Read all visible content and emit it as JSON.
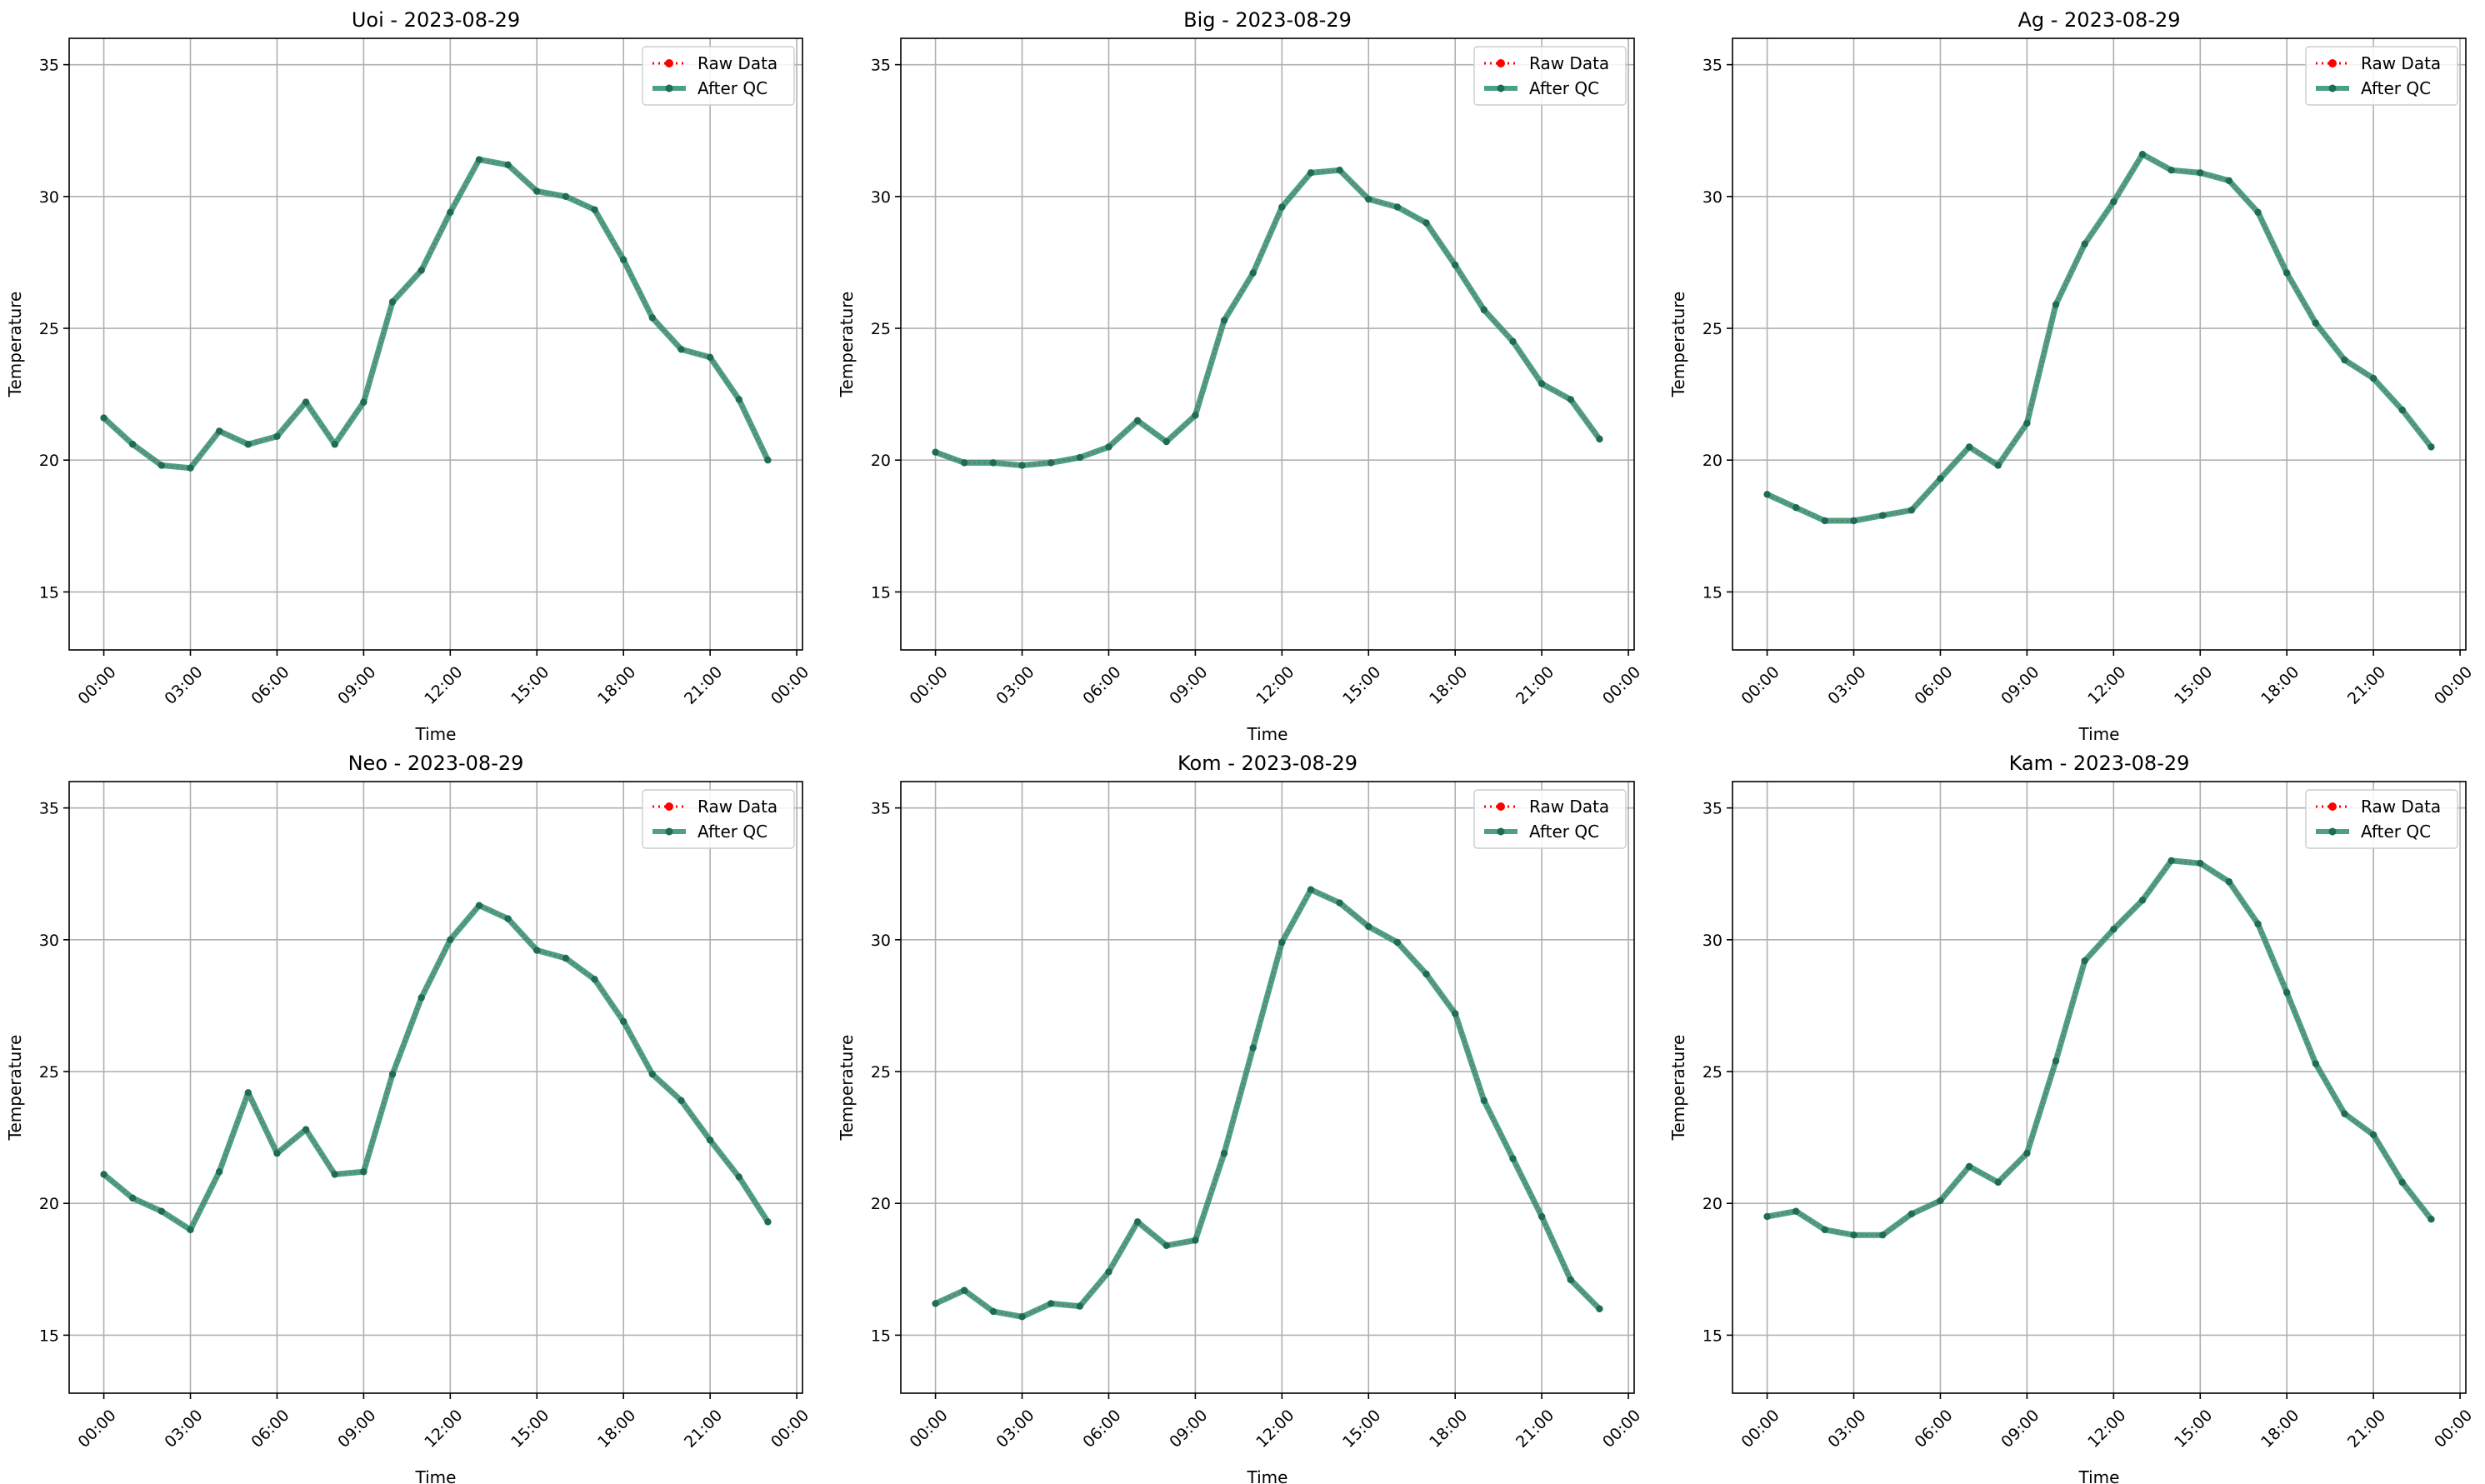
{
  "figure": {
    "background": "#ffffff"
  },
  "style": {
    "raw_color": "#ff0000",
    "qc_color": "#2a9070",
    "grid_color": "#b0b0b0",
    "axis_color": "#000000"
  },
  "chart_data": [
    {
      "type": "line",
      "title": "Uoi - 2023-08-29",
      "xlabel": "Time",
      "ylabel": "Temperature",
      "x": [
        "00:00",
        "01:00",
        "02:00",
        "03:00",
        "04:00",
        "05:00",
        "06:00",
        "07:00",
        "08:00",
        "09:00",
        "10:00",
        "11:00",
        "12:00",
        "13:00",
        "14:00",
        "15:00",
        "16:00",
        "17:00",
        "18:00",
        "19:00",
        "20:00",
        "21:00",
        "22:00",
        "23:00"
      ],
      "x_ticks": [
        "00:00",
        "03:00",
        "06:00",
        "09:00",
        "12:00",
        "15:00",
        "18:00",
        "21:00",
        "00:00"
      ],
      "x_range_hours": [
        -1.2,
        24.2
      ],
      "ylim": [
        12.8,
        36.0
      ],
      "y_ticks": [
        15,
        20,
        25,
        30,
        35
      ],
      "grid": true,
      "legend": "upper right",
      "series": [
        {
          "name": "Raw Data",
          "values": [
            21.6,
            20.6,
            19.8,
            19.7,
            21.1,
            20.6,
            20.9,
            22.2,
            20.6,
            22.2,
            26.0,
            27.2,
            29.4,
            31.4,
            31.2,
            30.2,
            30.0,
            29.5,
            27.6,
            25.4,
            24.2,
            23.9,
            22.3,
            20.0
          ]
        },
        {
          "name": "After QC",
          "values": [
            21.6,
            20.6,
            19.8,
            19.7,
            21.1,
            20.6,
            20.9,
            22.2,
            20.6,
            22.2,
            26.0,
            27.2,
            29.4,
            31.4,
            31.2,
            30.2,
            30.0,
            29.5,
            27.6,
            25.4,
            24.2,
            23.9,
            22.3,
            20.0
          ]
        }
      ]
    },
    {
      "type": "line",
      "title": "Big - 2023-08-29",
      "xlabel": "Time",
      "ylabel": "Temperature",
      "x": [
        "00:00",
        "01:00",
        "02:00",
        "03:00",
        "04:00",
        "05:00",
        "06:00",
        "07:00",
        "08:00",
        "09:00",
        "10:00",
        "11:00",
        "12:00",
        "13:00",
        "14:00",
        "15:00",
        "16:00",
        "17:00",
        "18:00",
        "19:00",
        "20:00",
        "21:00",
        "22:00",
        "23:00"
      ],
      "x_ticks": [
        "00:00",
        "03:00",
        "06:00",
        "09:00",
        "12:00",
        "15:00",
        "18:00",
        "21:00",
        "00:00"
      ],
      "x_range_hours": [
        -1.2,
        24.2
      ],
      "ylim": [
        12.8,
        36.0
      ],
      "y_ticks": [
        15,
        20,
        25,
        30,
        35
      ],
      "grid": true,
      "legend": "upper right",
      "series": [
        {
          "name": "Raw Data",
          "values": [
            20.3,
            19.9,
            19.9,
            19.8,
            19.9,
            20.1,
            20.5,
            21.5,
            20.7,
            21.7,
            25.3,
            27.1,
            29.6,
            30.9,
            31.0,
            29.9,
            29.6,
            29.0,
            27.4,
            25.7,
            24.5,
            22.9,
            22.3,
            20.8
          ]
        },
        {
          "name": "After QC",
          "values": [
            20.3,
            19.9,
            19.9,
            19.8,
            19.9,
            20.1,
            20.5,
            21.5,
            20.7,
            21.7,
            25.3,
            27.1,
            29.6,
            30.9,
            31.0,
            29.9,
            29.6,
            29.0,
            27.4,
            25.7,
            24.5,
            22.9,
            22.3,
            20.8
          ]
        }
      ]
    },
    {
      "type": "line",
      "title": "Ag - 2023-08-29",
      "xlabel": "Time",
      "ylabel": "Temperature",
      "x": [
        "00:00",
        "01:00",
        "02:00",
        "03:00",
        "04:00",
        "05:00",
        "06:00",
        "07:00",
        "08:00",
        "09:00",
        "10:00",
        "11:00",
        "12:00",
        "13:00",
        "14:00",
        "15:00",
        "16:00",
        "17:00",
        "18:00",
        "19:00",
        "20:00",
        "21:00",
        "22:00",
        "23:00"
      ],
      "x_ticks": [
        "00:00",
        "03:00",
        "06:00",
        "09:00",
        "12:00",
        "15:00",
        "18:00",
        "21:00",
        "00:00"
      ],
      "x_range_hours": [
        -1.2,
        24.2
      ],
      "ylim": [
        12.8,
        36.0
      ],
      "y_ticks": [
        15,
        20,
        25,
        30,
        35
      ],
      "grid": true,
      "legend": "upper right",
      "series": [
        {
          "name": "Raw Data",
          "values": [
            18.7,
            18.2,
            17.7,
            17.7,
            17.9,
            18.1,
            19.3,
            20.5,
            19.8,
            21.4,
            25.9,
            28.2,
            29.8,
            31.6,
            31.0,
            30.9,
            30.6,
            29.4,
            27.1,
            25.2,
            23.8,
            23.1,
            21.9,
            20.5
          ]
        },
        {
          "name": "After QC",
          "values": [
            18.7,
            18.2,
            17.7,
            17.7,
            17.9,
            18.1,
            19.3,
            20.5,
            19.8,
            21.4,
            25.9,
            28.2,
            29.8,
            31.6,
            31.0,
            30.9,
            30.6,
            29.4,
            27.1,
            25.2,
            23.8,
            23.1,
            21.9,
            20.5
          ]
        }
      ]
    },
    {
      "type": "line",
      "title": "Neo - 2023-08-29",
      "xlabel": "Time",
      "ylabel": "Temperature",
      "x": [
        "00:00",
        "01:00",
        "02:00",
        "03:00",
        "04:00",
        "05:00",
        "06:00",
        "07:00",
        "08:00",
        "09:00",
        "10:00",
        "11:00",
        "12:00",
        "13:00",
        "14:00",
        "15:00",
        "16:00",
        "17:00",
        "18:00",
        "19:00",
        "20:00",
        "21:00",
        "22:00",
        "23:00"
      ],
      "x_ticks": [
        "00:00",
        "03:00",
        "06:00",
        "09:00",
        "12:00",
        "15:00",
        "18:00",
        "21:00",
        "00:00"
      ],
      "x_range_hours": [
        -1.2,
        24.2
      ],
      "ylim": [
        12.8,
        36.0
      ],
      "y_ticks": [
        15,
        20,
        25,
        30,
        35
      ],
      "grid": true,
      "legend": "upper right",
      "series": [
        {
          "name": "Raw Data",
          "values": [
            21.1,
            20.2,
            19.7,
            19.0,
            21.2,
            24.2,
            21.9,
            22.8,
            21.1,
            21.2,
            24.9,
            27.8,
            30.0,
            31.3,
            30.8,
            29.6,
            29.3,
            28.5,
            26.9,
            24.9,
            23.9,
            22.4,
            21.0,
            19.3
          ]
        },
        {
          "name": "After QC",
          "values": [
            21.1,
            20.2,
            19.7,
            19.0,
            21.2,
            24.2,
            21.9,
            22.8,
            21.1,
            21.2,
            24.9,
            27.8,
            30.0,
            31.3,
            30.8,
            29.6,
            29.3,
            28.5,
            26.9,
            24.9,
            23.9,
            22.4,
            21.0,
            19.3
          ]
        }
      ]
    },
    {
      "type": "line",
      "title": "Kom - 2023-08-29",
      "xlabel": "Time",
      "ylabel": "Temperature",
      "x": [
        "00:00",
        "01:00",
        "02:00",
        "03:00",
        "04:00",
        "05:00",
        "06:00",
        "07:00",
        "08:00",
        "09:00",
        "10:00",
        "11:00",
        "12:00",
        "13:00",
        "14:00",
        "15:00",
        "16:00",
        "17:00",
        "18:00",
        "19:00",
        "20:00",
        "21:00",
        "22:00",
        "23:00"
      ],
      "x_ticks": [
        "00:00",
        "03:00",
        "06:00",
        "09:00",
        "12:00",
        "15:00",
        "18:00",
        "21:00",
        "00:00"
      ],
      "x_range_hours": [
        -1.2,
        24.2
      ],
      "ylim": [
        12.8,
        36.0
      ],
      "y_ticks": [
        15,
        20,
        25,
        30,
        35
      ],
      "grid": true,
      "legend": "upper right",
      "series": [
        {
          "name": "Raw Data",
          "values": [
            16.2,
            16.7,
            15.9,
            15.7,
            16.2,
            16.1,
            17.4,
            19.3,
            18.4,
            18.6,
            21.9,
            25.9,
            29.9,
            31.9,
            31.4,
            30.5,
            29.9,
            28.7,
            27.2,
            23.9,
            21.7,
            19.5,
            17.1,
            16.0
          ]
        },
        {
          "name": "After QC",
          "values": [
            16.2,
            16.7,
            15.9,
            15.7,
            16.2,
            16.1,
            17.4,
            19.3,
            18.4,
            18.6,
            21.9,
            25.9,
            29.9,
            31.9,
            31.4,
            30.5,
            29.9,
            28.7,
            27.2,
            23.9,
            21.7,
            19.5,
            17.1,
            16.0
          ]
        }
      ]
    },
    {
      "type": "line",
      "title": "Kam - 2023-08-29",
      "xlabel": "Time",
      "ylabel": "Temperature",
      "x": [
        "00:00",
        "01:00",
        "02:00",
        "03:00",
        "04:00",
        "05:00",
        "06:00",
        "07:00",
        "08:00",
        "09:00",
        "10:00",
        "11:00",
        "12:00",
        "13:00",
        "14:00",
        "15:00",
        "16:00",
        "17:00",
        "18:00",
        "19:00",
        "20:00",
        "21:00",
        "22:00",
        "23:00"
      ],
      "x_ticks": [
        "00:00",
        "03:00",
        "06:00",
        "09:00",
        "12:00",
        "15:00",
        "18:00",
        "21:00",
        "00:00"
      ],
      "x_range_hours": [
        -1.2,
        24.2
      ],
      "ylim": [
        12.8,
        36.0
      ],
      "y_ticks": [
        15,
        20,
        25,
        30,
        35
      ],
      "grid": true,
      "legend": "upper right",
      "series": [
        {
          "name": "Raw Data",
          "values": [
            19.5,
            19.7,
            19.0,
            18.8,
            18.8,
            19.6,
            20.1,
            21.4,
            20.8,
            21.9,
            25.4,
            29.2,
            30.4,
            31.5,
            33.0,
            32.9,
            32.2,
            30.6,
            28.0,
            25.3,
            23.4,
            22.6,
            20.8,
            19.4
          ]
        },
        {
          "name": "After QC",
          "values": [
            19.5,
            19.7,
            19.0,
            18.8,
            18.8,
            19.6,
            20.1,
            21.4,
            20.8,
            21.9,
            25.4,
            29.2,
            30.4,
            31.5,
            33.0,
            32.9,
            32.2,
            30.6,
            28.0,
            25.3,
            23.4,
            22.6,
            20.8,
            19.4
          ]
        }
      ]
    }
  ]
}
